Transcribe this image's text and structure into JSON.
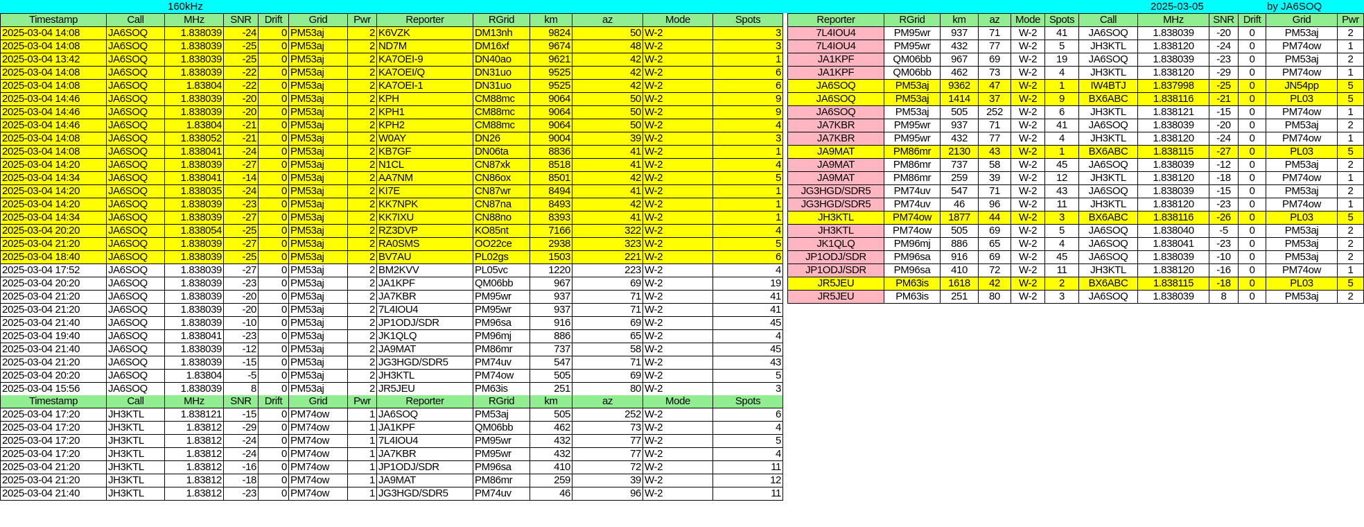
{
  "title": {
    "band": "160kHz",
    "date": "2025-03-05",
    "author": "by JA6SOQ"
  },
  "colors": {
    "title_bg": "#00ffff",
    "header_bg": "#90ee90",
    "highlight": "#ffff00",
    "reporter_bg": "#ffb6c1"
  },
  "left_headers": [
    "Timestamp",
    "Call",
    "MHz",
    "SNR",
    "Drift",
    "Grid",
    "Pwr",
    "Reporter",
    "RGrid",
    "km",
    "az",
    "Mode",
    "Spots"
  ],
  "left_table1": {
    "highlight_count": 18,
    "rows": [
      [
        "2025-03-04 14:08",
        "JA6SOQ",
        "1.838039",
        "-24",
        "0",
        "PM53aj",
        "2",
        "K6VZK",
        "DM13nh",
        "9824",
        "50",
        "W-2",
        "3"
      ],
      [
        "2025-03-04 14:08",
        "JA6SOQ",
        "1.838039",
        "-25",
        "0",
        "PM53aj",
        "2",
        "ND7M",
        "DM16xf",
        "9674",
        "48",
        "W-2",
        "3"
      ],
      [
        "2025-03-04 13:42",
        "JA6SOQ",
        "1.838039",
        "-25",
        "0",
        "PM53aj",
        "2",
        "KA7OEI-9",
        "DN40ao",
        "9621",
        "42",
        "W-2",
        "1"
      ],
      [
        "2025-03-04 14:08",
        "JA6SOQ",
        "1.838039",
        "-22",
        "0",
        "PM53aj",
        "2",
        "KA7OEI/Q",
        "DN31uo",
        "9525",
        "42",
        "W-2",
        "6"
      ],
      [
        "2025-03-04 14:08",
        "JA6SOQ",
        "1.83804",
        "-22",
        "0",
        "PM53aj",
        "2",
        "KA7OEI-1",
        "DN31uo",
        "9525",
        "42",
        "W-2",
        "6"
      ],
      [
        "2025-03-04 14:46",
        "JA6SOQ",
        "1.838039",
        "-20",
        "0",
        "PM53aj",
        "2",
        "KPH",
        "CM88mc",
        "9064",
        "50",
        "W-2",
        "9"
      ],
      [
        "2025-03-04 14:46",
        "JA6SOQ",
        "1.838039",
        "-20",
        "0",
        "PM53aj",
        "2",
        "KPH1",
        "CM88mc",
        "9064",
        "50",
        "W-2",
        "9"
      ],
      [
        "2025-03-04 14:46",
        "JA6SOQ",
        "1.83804",
        "-21",
        "0",
        "PM53aj",
        "2",
        "KPH2",
        "CM88mc",
        "9064",
        "50",
        "W-2",
        "4"
      ],
      [
        "2025-03-04 14:08",
        "JA6SOQ",
        "1.838052",
        "-21",
        "0",
        "PM53aj",
        "2",
        "W0AY",
        "DN26",
        "9004",
        "39",
        "W-2",
        "3"
      ],
      [
        "2025-03-04 14:08",
        "JA6SOQ",
        "1.838041",
        "-24",
        "0",
        "PM53aj",
        "2",
        "KB7GF",
        "DN06ta",
        "8836",
        "41",
        "W-2",
        "1"
      ],
      [
        "2025-03-04 14:20",
        "JA6SOQ",
        "1.838039",
        "-27",
        "0",
        "PM53aj",
        "2",
        "N1CL",
        "CN87xk",
        "8518",
        "41",
        "W-2",
        "4"
      ],
      [
        "2025-03-04 14:34",
        "JA6SOQ",
        "1.838041",
        "-14",
        "0",
        "PM53aj",
        "2",
        "AA7NM",
        "CN86ox",
        "8501",
        "42",
        "W-2",
        "5"
      ],
      [
        "2025-03-04 14:20",
        "JA6SOQ",
        "1.838035",
        "-24",
        "0",
        "PM53aj",
        "2",
        "KI7E",
        "CN87wr",
        "8494",
        "41",
        "W-2",
        "1"
      ],
      [
        "2025-03-04 14:20",
        "JA6SOQ",
        "1.838039",
        "-23",
        "0",
        "PM53aj",
        "2",
        "KK7NPK",
        "CN87na",
        "8493",
        "42",
        "W-2",
        "1"
      ],
      [
        "2025-03-04 14:34",
        "JA6SOQ",
        "1.838039",
        "-27",
        "0",
        "PM53aj",
        "2",
        "KK7IXU",
        "CN88no",
        "8393",
        "41",
        "W-2",
        "1"
      ],
      [
        "2025-03-04 20:20",
        "JA6SOQ",
        "1.838054",
        "-25",
        "0",
        "PM53aj",
        "2",
        "RZ3DVP",
        "KO85nt",
        "7166",
        "322",
        "W-2",
        "4"
      ],
      [
        "2025-03-04 21:20",
        "JA6SOQ",
        "1.838039",
        "-27",
        "0",
        "PM53aj",
        "2",
        "RA0SMS",
        "OO22ce",
        "2938",
        "323",
        "W-2",
        "5"
      ],
      [
        "2025-03-04 18:40",
        "JA6SOQ",
        "1.838039",
        "-25",
        "0",
        "PM53aj",
        "2",
        "BV7AU",
        "PL02gs",
        "1503",
        "221",
        "W-2",
        "6"
      ],
      [
        "2025-03-04 17:52",
        "JA6SOQ",
        "1.838039",
        "-27",
        "0",
        "PM53aj",
        "2",
        "BM2KVV",
        "PL05vc",
        "1220",
        "223",
        "W-2",
        "4"
      ],
      [
        "2025-03-04 20:20",
        "JA6SOQ",
        "1.838039",
        "-23",
        "0",
        "PM53aj",
        "2",
        "JA1KPF",
        "QM06bb",
        "967",
        "69",
        "W-2",
        "19"
      ],
      [
        "2025-03-04 21:20",
        "JA6SOQ",
        "1.838039",
        "-20",
        "0",
        "PM53aj",
        "2",
        "JA7KBR",
        "PM95wr",
        "937",
        "71",
        "W-2",
        "41"
      ],
      [
        "2025-03-04 21:20",
        "JA6SOQ",
        "1.838039",
        "-20",
        "0",
        "PM53aj",
        "2",
        "7L4IOU4",
        "PM95wr",
        "937",
        "71",
        "W-2",
        "41"
      ],
      [
        "2025-03-04 21:40",
        "JA6SOQ",
        "1.838039",
        "-10",
        "0",
        "PM53aj",
        "2",
        "JP1ODJ/SDR",
        "PM96sa",
        "916",
        "69",
        "W-2",
        "45"
      ],
      [
        "2025-03-04 19:40",
        "JA6SOQ",
        "1.838041",
        "-23",
        "0",
        "PM53aj",
        "2",
        "JK1QLQ",
        "PM96mj",
        "886",
        "65",
        "W-2",
        "4"
      ],
      [
        "2025-03-04 21:40",
        "JA6SOQ",
        "1.838039",
        "-12",
        "0",
        "PM53aj",
        "2",
        "JA9MAT",
        "PM86mr",
        "737",
        "58",
        "W-2",
        "45"
      ],
      [
        "2025-03-04 21:20",
        "JA6SOQ",
        "1.838039",
        "-15",
        "0",
        "PM53aj",
        "2",
        "JG3HGD/SDR5",
        "PM74uv",
        "547",
        "71",
        "W-2",
        "43"
      ],
      [
        "2025-03-04 20:20",
        "JA6SOQ",
        "1.83804",
        "-5",
        "0",
        "PM53aj",
        "2",
        "JH3KTL",
        "PM74ow",
        "505",
        "69",
        "W-2",
        "5"
      ],
      [
        "2025-03-04 15:56",
        "JA6SOQ",
        "1.838039",
        "8",
        "0",
        "PM53aj",
        "2",
        "JR5JEU",
        "PM63is",
        "251",
        "80",
        "W-2",
        "3"
      ]
    ]
  },
  "left_table2": {
    "rows": [
      [
        "2025-03-04 17:20",
        "JH3KTL",
        "1.838121",
        "-15",
        "0",
        "PM74ow",
        "1",
        "JA6SOQ",
        "PM53aj",
        "505",
        "252",
        "W-2",
        "6"
      ],
      [
        "2025-03-04 17:20",
        "JH3KTL",
        "1.83812",
        "-29",
        "0",
        "PM74ow",
        "1",
        "JA1KPF",
        "QM06bb",
        "462",
        "73",
        "W-2",
        "4"
      ],
      [
        "2025-03-04 17:20",
        "JH3KTL",
        "1.83812",
        "-24",
        "0",
        "PM74ow",
        "1",
        "7L4IOU4",
        "PM95wr",
        "432",
        "77",
        "W-2",
        "5"
      ],
      [
        "2025-03-04 17:20",
        "JH3KTL",
        "1.83812",
        "-24",
        "0",
        "PM74ow",
        "1",
        "JA7KBR",
        "PM95wr",
        "432",
        "77",
        "W-2",
        "4"
      ],
      [
        "2025-03-04 21:20",
        "JH3KTL",
        "1.83812",
        "-16",
        "0",
        "PM74ow",
        "1",
        "JP1ODJ/SDR",
        "PM96sa",
        "410",
        "72",
        "W-2",
        "11"
      ],
      [
        "2025-03-04 21:20",
        "JH3KTL",
        "1.83812",
        "-18",
        "0",
        "PM74ow",
        "1",
        "JA9MAT",
        "PM86mr",
        "259",
        "39",
        "W-2",
        "12"
      ],
      [
        "2025-03-04 21:40",
        "JH3KTL",
        "1.83812",
        "-23",
        "0",
        "PM74ow",
        "1",
        "JG3HGD/SDR5",
        "PM74uv",
        "46",
        "96",
        "W-2",
        "11"
      ]
    ]
  },
  "right_headers": [
    "Reporter",
    "RGrid",
    "km",
    "az",
    "Mode",
    "Spots",
    "Call",
    "MHz",
    "SNR",
    "Drift",
    "Grid",
    "Pwr"
  ],
  "right_table": {
    "highlight_rows": [
      4,
      5,
      9,
      14,
      19
    ],
    "rows": [
      [
        "7L4IOU4",
        "PM95wr",
        "937",
        "71",
        "W-2",
        "41",
        "JA6SOQ",
        "1.838039",
        "-20",
        "0",
        "PM53aj",
        "2"
      ],
      [
        "7L4IOU4",
        "PM95wr",
        "432",
        "77",
        "W-2",
        "5",
        "JH3KTL",
        "1.838120",
        "-24",
        "0",
        "PM74ow",
        "1"
      ],
      [
        "JA1KPF",
        "QM06bb",
        "967",
        "69",
        "W-2",
        "19",
        "JA6SOQ",
        "1.838039",
        "-23",
        "0",
        "PM53aj",
        "2"
      ],
      [
        "JA1KPF",
        "QM06bb",
        "462",
        "73",
        "W-2",
        "4",
        "JH3KTL",
        "1.838120",
        "-29",
        "0",
        "PM74ow",
        "1"
      ],
      [
        "JA6SOQ",
        "PM53aj",
        "9362",
        "47",
        "W-2",
        "1",
        "IW4BTJ",
        "1.837998",
        "-25",
        "0",
        "JN54pp",
        "5"
      ],
      [
        "JA6SOQ",
        "PM53aj",
        "1414",
        "37",
        "W-2",
        "9",
        "BX6ABC",
        "1.838116",
        "-21",
        "0",
        "PL03",
        "5"
      ],
      [
        "JA6SOQ",
        "PM53aj",
        "505",
        "252",
        "W-2",
        "6",
        "JH3KTL",
        "1.838121",
        "-15",
        "0",
        "PM74ow",
        "1"
      ],
      [
        "JA7KBR",
        "PM95wr",
        "937",
        "71",
        "W-2",
        "41",
        "JA6SOQ",
        "1.838039",
        "-20",
        "0",
        "PM53aj",
        "2"
      ],
      [
        "JA7KBR",
        "PM95wr",
        "432",
        "77",
        "W-2",
        "4",
        "JH3KTL",
        "1.838120",
        "-24",
        "0",
        "PM74ow",
        "1"
      ],
      [
        "JA9MAT",
        "PM86mr",
        "2130",
        "43",
        "W-2",
        "1",
        "BX6ABC",
        "1.838115",
        "-27",
        "0",
        "PL03",
        "5"
      ],
      [
        "JA9MAT",
        "PM86mr",
        "737",
        "58",
        "W-2",
        "45",
        "JA6SOQ",
        "1.838039",
        "-12",
        "0",
        "PM53aj",
        "2"
      ],
      [
        "JA9MAT",
        "PM86mr",
        "259",
        "39",
        "W-2",
        "12",
        "JH3KTL",
        "1.838120",
        "-18",
        "0",
        "PM74ow",
        "1"
      ],
      [
        "JG3HGD/SDR5",
        "PM74uv",
        "547",
        "71",
        "W-2",
        "43",
        "JA6SOQ",
        "1.838039",
        "-15",
        "0",
        "PM53aj",
        "2"
      ],
      [
        "JG3HGD/SDR5",
        "PM74uv",
        "46",
        "96",
        "W-2",
        "11",
        "JH3KTL",
        "1.838120",
        "-23",
        "0",
        "PM74ow",
        "1"
      ],
      [
        "JH3KTL",
        "PM74ow",
        "1877",
        "44",
        "W-2",
        "3",
        "BX6ABC",
        "1.838116",
        "-26",
        "0",
        "PL03",
        "5"
      ],
      [
        "JH3KTL",
        "PM74ow",
        "505",
        "69",
        "W-2",
        "5",
        "JA6SOQ",
        "1.838040",
        "-5",
        "0",
        "PM53aj",
        "2"
      ],
      [
        "JK1QLQ",
        "PM96mj",
        "886",
        "65",
        "W-2",
        "4",
        "JA6SOQ",
        "1.838041",
        "-23",
        "0",
        "PM53aj",
        "2"
      ],
      [
        "JP1ODJ/SDR",
        "PM96sa",
        "916",
        "69",
        "W-2",
        "45",
        "JA6SOQ",
        "1.838039",
        "-10",
        "0",
        "PM53aj",
        "2"
      ],
      [
        "JP1ODJ/SDR",
        "PM96sa",
        "410",
        "72",
        "W-2",
        "11",
        "JH3KTL",
        "1.838120",
        "-16",
        "0",
        "PM74ow",
        "1"
      ],
      [
        "JR5JEU",
        "PM63is",
        "1618",
        "42",
        "W-2",
        "2",
        "BX6ABC",
        "1.838115",
        "-18",
        "0",
        "PL03",
        "5"
      ],
      [
        "JR5JEU",
        "PM63is",
        "251",
        "80",
        "W-2",
        "3",
        "JA6SOQ",
        "1.838039",
        "8",
        "0",
        "PM53aj",
        "2"
      ]
    ]
  }
}
